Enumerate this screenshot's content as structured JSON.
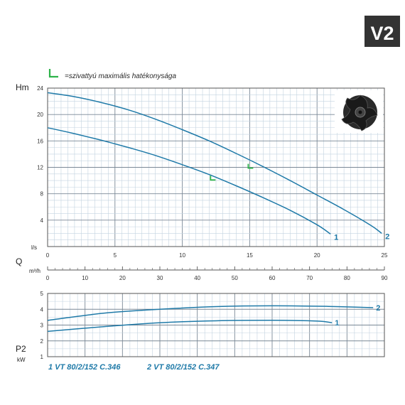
{
  "badge": "V2",
  "legend": {
    "text": "=szivattyú maximális hatékonysága",
    "marker_color": "#2db34a"
  },
  "colors": {
    "curve": "#1f7aa8",
    "grid_major": "#7a8896",
    "grid_minor": "#c3d3e0",
    "frame": "#555555",
    "efficiency": "#2db34a"
  },
  "impeller_icon": "pump-impeller-icon",
  "models": [
    "1  VT 80/2/152 C.346",
    "2  VT 80/2/152 C.347"
  ],
  "chart_data": [
    {
      "type": "line",
      "ylabel": "Hm",
      "xlabel": "l/s",
      "xlim": [
        0,
        25
      ],
      "ylim": [
        0,
        24
      ],
      "x_ticks": [
        0,
        5,
        10,
        15,
        20,
        25
      ],
      "y_ticks": [
        4,
        8,
        12,
        16,
        20,
        24
      ],
      "grid": true,
      "series": [
        {
          "name": "1",
          "x": [
            0,
            2,
            4,
            6,
            8,
            10,
            12,
            14,
            16,
            18,
            20,
            21
          ],
          "y": [
            18,
            17.1,
            16.1,
            15,
            13.8,
            12.4,
            10.9,
            9.2,
            7.4,
            5.5,
            3.3,
            1.9
          ]
        },
        {
          "name": "2",
          "x": [
            0,
            2,
            4,
            6,
            8,
            10,
            12,
            14,
            16,
            18,
            20,
            22,
            24,
            24.8
          ],
          "y": [
            23.3,
            22.7,
            21.8,
            20.7,
            19.3,
            17.7,
            16.0,
            14.1,
            12.1,
            10.0,
            7.8,
            5.6,
            3.2,
            2.0
          ]
        }
      ],
      "efficiency_points": [
        {
          "series": "1",
          "x": 12.2,
          "y": 10.3
        },
        {
          "series": "2",
          "x": 15,
          "y": 12.1
        }
      ]
    },
    {
      "type": "axis",
      "xlabel": "Q",
      "unit": "m³/h",
      "xlim": [
        0,
        90
      ],
      "x_ticks": [
        0,
        10,
        20,
        30,
        40,
        50,
        60,
        70,
        80,
        90
      ]
    },
    {
      "type": "line",
      "ylabel": "P2",
      "unit": "kW",
      "xlim": [
        0,
        90
      ],
      "ylim": [
        1,
        5
      ],
      "y_ticks": [
        1,
        2,
        3,
        4,
        5
      ],
      "grid": true,
      "series": [
        {
          "name": "1",
          "x": [
            0,
            15,
            30,
            45,
            60,
            72,
            76
          ],
          "y": [
            2.6,
            2.9,
            3.15,
            3.27,
            3.3,
            3.25,
            3.15
          ]
        },
        {
          "name": "2",
          "x": [
            0,
            15,
            30,
            45,
            60,
            75,
            87
          ],
          "y": [
            3.3,
            3.75,
            4.0,
            4.17,
            4.22,
            4.18,
            4.1
          ]
        }
      ]
    }
  ]
}
